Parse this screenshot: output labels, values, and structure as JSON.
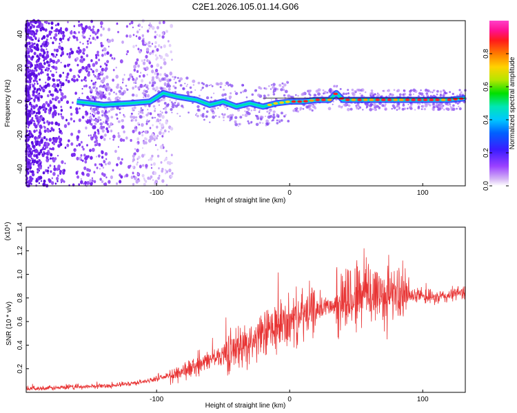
{
  "title": "C2E1.2026.105.01.14.G06",
  "chart_data": [
    {
      "type": "heatmap",
      "name": "spectrogram",
      "xlabel": "Height of straight line (km)",
      "ylabel": "Frequency (Hz)",
      "xlim": [
        -198,
        132
      ],
      "ylim": [
        -50,
        48
      ],
      "xticks": [
        -100,
        0,
        100
      ],
      "yticks": [
        40,
        20,
        0,
        -20,
        -40
      ],
      "colorbar": {
        "label": "Normalized spectral amplitude",
        "range": [
          0,
          1
        ],
        "ticks": [
          0.0,
          0.2,
          0.4,
          0.6,
          0.8
        ],
        "tick_labels": [
          "0.0",
          "0.2",
          "0.4",
          "0.6",
          "0.8"
        ],
        "colors": [
          "#e6d2f5",
          "#c89cf0",
          "#8a2be2",
          "#4020ff",
          "#0070ff",
          "#00c8ff",
          "#00e6b4",
          "#00e000",
          "#b4e600",
          "#ffd200",
          "#ff8c00",
          "#ff2020",
          "#ff1090",
          "#ff40c0"
        ]
      },
      "signal_track": [
        {
          "x": -160,
          "y": 0
        },
        {
          "x": -140,
          "y": -2
        },
        {
          "x": -120,
          "y": -1
        },
        {
          "x": -105,
          "y": 0
        },
        {
          "x": -95,
          "y": 5
        },
        {
          "x": -85,
          "y": 3
        },
        {
          "x": -70,
          "y": 1
        },
        {
          "x": -60,
          "y": -2
        },
        {
          "x": -50,
          "y": 0
        },
        {
          "x": -40,
          "y": -3
        },
        {
          "x": -30,
          "y": -1
        },
        {
          "x": -20,
          "y": -3
        },
        {
          "x": -10,
          "y": -1
        },
        {
          "x": 0,
          "y": 0
        },
        {
          "x": 10,
          "y": 0
        },
        {
          "x": 20,
          "y": 1
        },
        {
          "x": 30,
          "y": 1
        },
        {
          "x": 35,
          "y": 5
        },
        {
          "x": 40,
          "y": 1
        },
        {
          "x": 60,
          "y": 1
        },
        {
          "x": 80,
          "y": 1
        },
        {
          "x": 100,
          "y": 1
        },
        {
          "x": 120,
          "y": 1
        },
        {
          "x": 132,
          "y": 2
        }
      ]
    },
    {
      "type": "line",
      "name": "snr",
      "xlabel": "Height of straight line (km)",
      "ylabel": "SNR (10 * v/v)",
      "yscale_note": "(x10⁴)",
      "xlim": [
        -198,
        132
      ],
      "ylim": [
        0,
        1.4
      ],
      "xticks": [
        -100,
        0,
        100
      ],
      "yticks": [
        0.2,
        0.4,
        0.6,
        0.8,
        1.0,
        1.2,
        1.4
      ],
      "ytick_labels": [
        "0.2",
        "0.4",
        "0.6",
        "0.8",
        "1.0",
        "1.2",
        "1.4"
      ],
      "color": "#e83434",
      "series": [
        {
          "name": "SNR",
          "envelope": [
            {
              "x": -198,
              "y": 0.03
            },
            {
              "x": -170,
              "y": 0.04
            },
            {
              "x": -150,
              "y": 0.05
            },
            {
              "x": -130,
              "y": 0.06
            },
            {
              "x": -110,
              "y": 0.09
            },
            {
              "x": -90,
              "y": 0.14
            },
            {
              "x": -70,
              "y": 0.22
            },
            {
              "x": -55,
              "y": 0.3
            },
            {
              "x": -40,
              "y": 0.37
            },
            {
              "x": -25,
              "y": 0.45
            },
            {
              "x": -10,
              "y": 0.55
            },
            {
              "x": 0,
              "y": 0.6
            },
            {
              "x": 10,
              "y": 0.65
            },
            {
              "x": 20,
              "y": 0.7
            },
            {
              "x": 30,
              "y": 0.74
            },
            {
              "x": 40,
              "y": 0.78
            },
            {
              "x": 50,
              "y": 0.82
            },
            {
              "x": 60,
              "y": 0.85
            },
            {
              "x": 70,
              "y": 0.83
            },
            {
              "x": 80,
              "y": 0.84
            },
            {
              "x": 90,
              "y": 0.82
            },
            {
              "x": 100,
              "y": 0.81
            },
            {
              "x": 110,
              "y": 0.8
            },
            {
              "x": 120,
              "y": 0.82
            },
            {
              "x": 132,
              "y": 0.86
            }
          ]
        }
      ]
    }
  ]
}
